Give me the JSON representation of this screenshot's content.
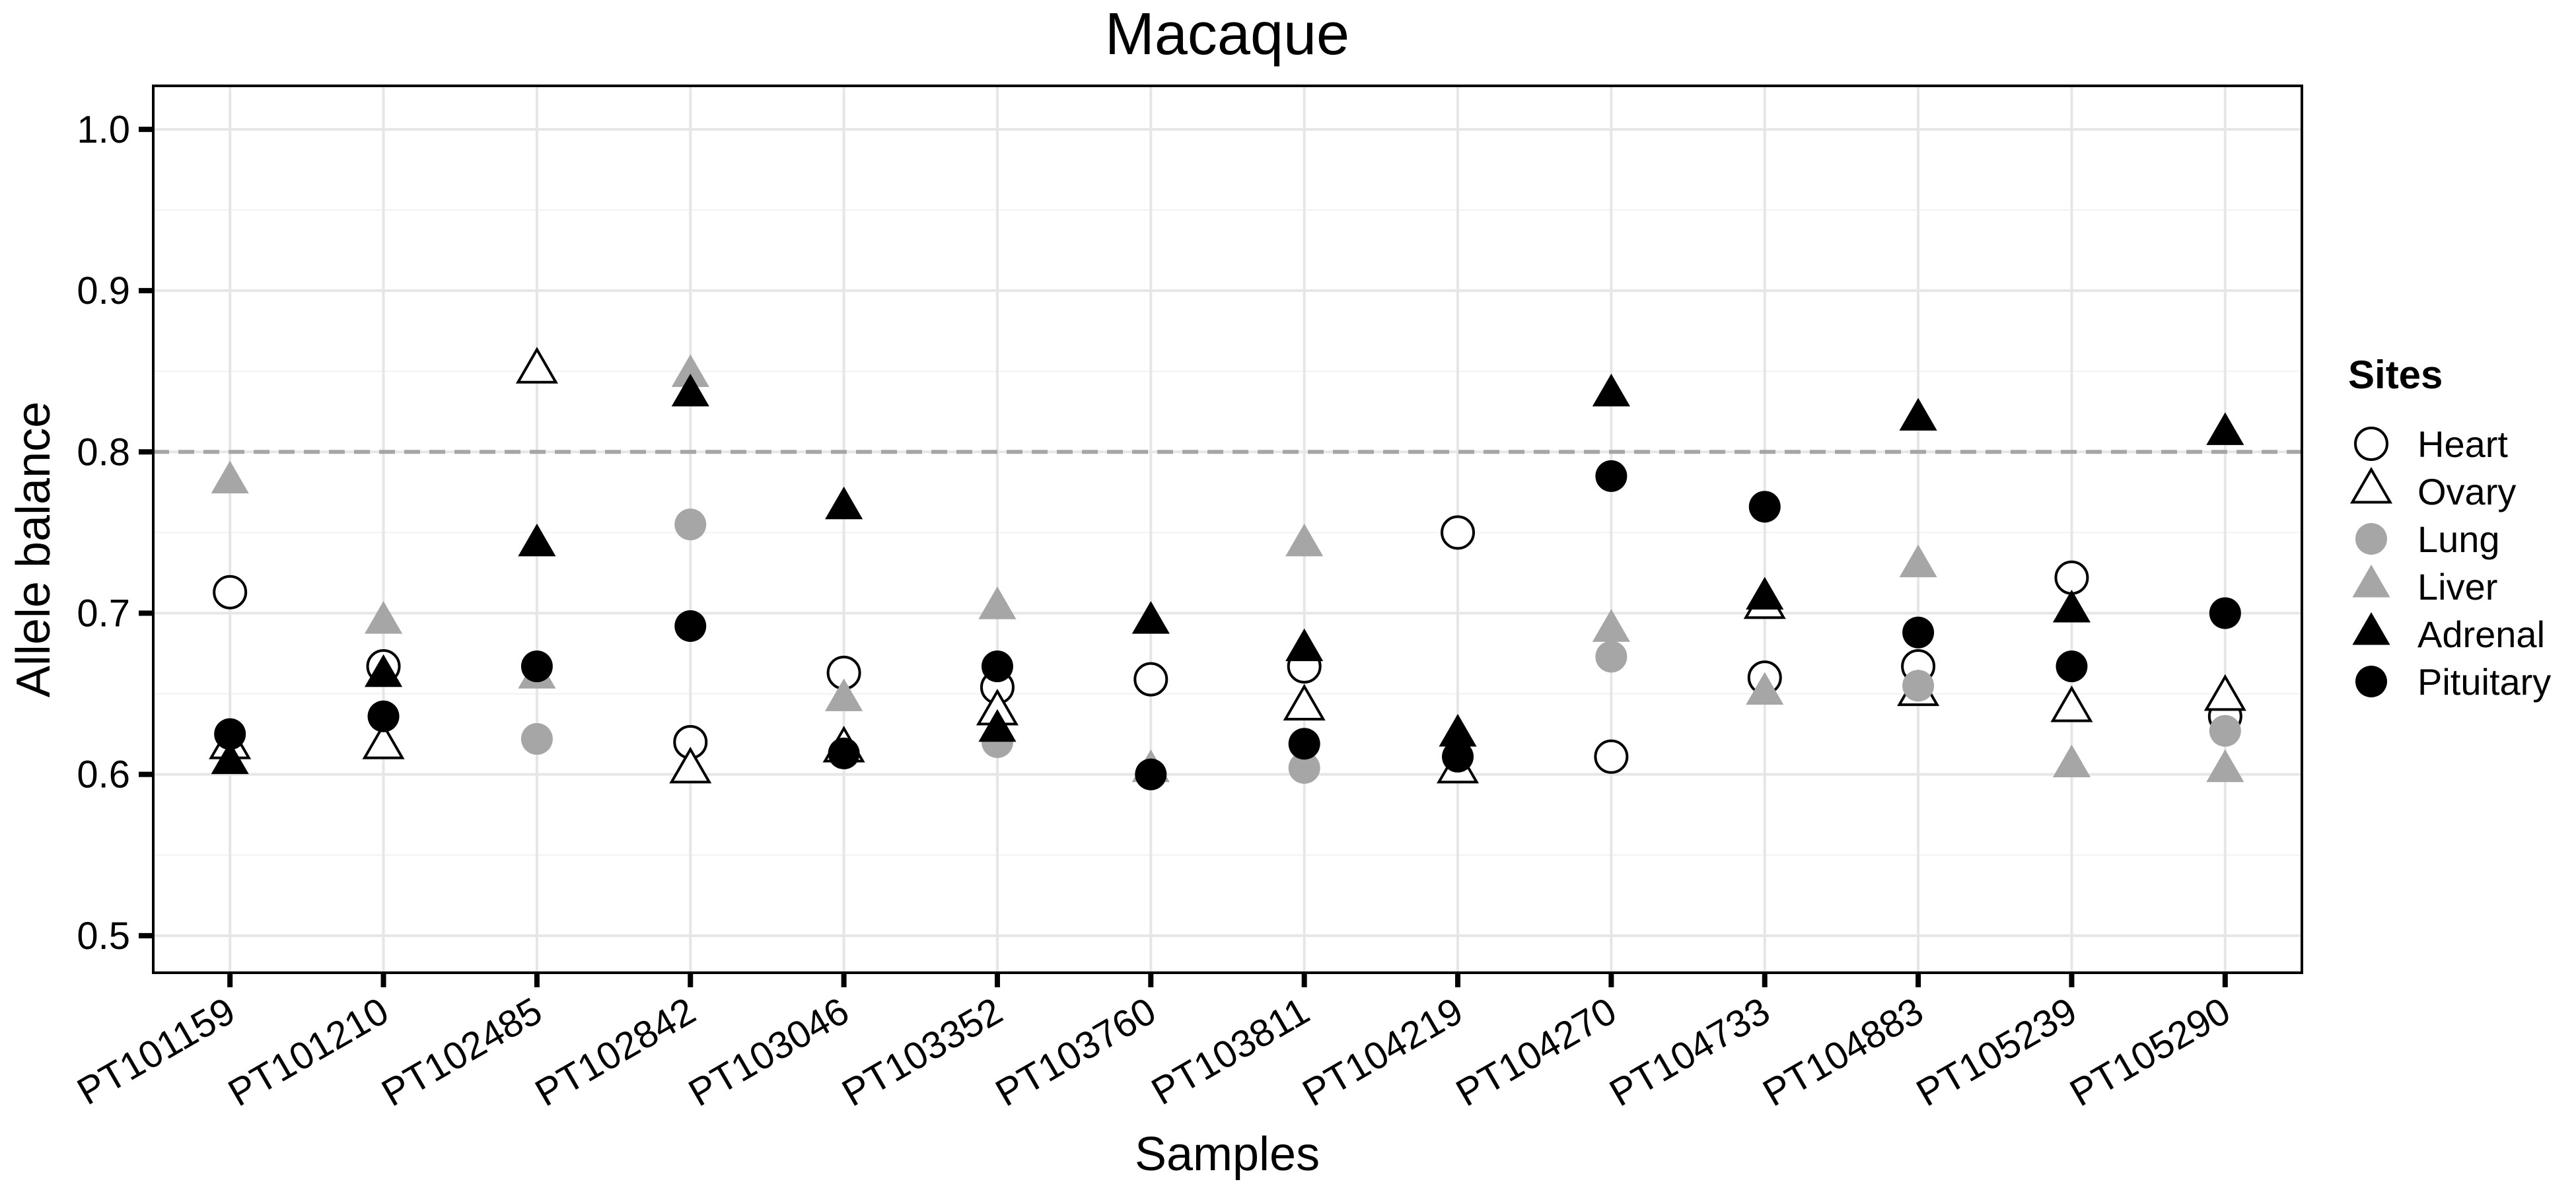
{
  "chart_data": {
    "type": "scatter",
    "title": "Macaque",
    "xlabel": "Samples",
    "ylabel": "Allele balance",
    "categories": [
      "PT101159",
      "PT101210",
      "PT102485",
      "PT102842",
      "PT103046",
      "PT103352",
      "PT103760",
      "PT103811",
      "PT104219",
      "PT104270",
      "PT104733",
      "PT104883",
      "PT105239",
      "PT105290"
    ],
    "yticks": [
      "0.5",
      "0.6",
      "0.7",
      "0.8",
      "0.9",
      "1.0"
    ],
    "ylim": [
      0.477,
      1.027
    ],
    "grid": true,
    "reference_line": 0.8,
    "legend_title": "Sites",
    "legend_position": "right",
    "series": [
      {
        "name": "Heart",
        "shape": "circle-open",
        "color": "#000000",
        "values": [
          0.713,
          0.667,
          null,
          0.62,
          0.663,
          0.654,
          0.659,
          0.667,
          0.75,
          0.611,
          0.66,
          0.667,
          0.722,
          0.636
        ]
      },
      {
        "name": "Ovary",
        "shape": "triangle-open",
        "color": "#000000",
        "values": [
          0.617,
          0.617,
          0.85,
          0.602,
          0.615,
          0.638,
          null,
          0.641,
          0.602,
          null,
          0.704,
          0.65,
          0.64,
          0.647
        ]
      },
      {
        "name": "Lung",
        "shape": "circle-filled",
        "color": "#a6a6a6",
        "values": [
          null,
          null,
          0.622,
          0.755,
          null,
          0.62,
          null,
          0.604,
          null,
          0.673,
          null,
          0.655,
          null,
          0.627
        ]
      },
      {
        "name": "Liver",
        "shape": "triangle-filled",
        "color": "#a6a6a6",
        "values": [
          0.781,
          0.694,
          0.66,
          0.847,
          0.646,
          0.703,
          0.602,
          0.742,
          null,
          0.689,
          0.65,
          0.729,
          0.605,
          0.602
        ]
      },
      {
        "name": "Adrenal",
        "shape": "triangle-filled",
        "color": "#000000",
        "values": [
          0.607,
          0.661,
          0.742,
          0.835,
          0.765,
          0.627,
          0.694,
          0.677,
          0.624,
          0.835,
          0.709,
          0.82,
          0.701,
          0.811
        ]
      },
      {
        "name": "Pituitary",
        "shape": "circle-filled",
        "color": "#000000",
        "values": [
          0.625,
          0.636,
          0.667,
          0.692,
          0.613,
          0.667,
          0.6,
          0.619,
          0.611,
          0.785,
          0.766,
          0.688,
          0.667,
          0.7
        ]
      }
    ]
  }
}
